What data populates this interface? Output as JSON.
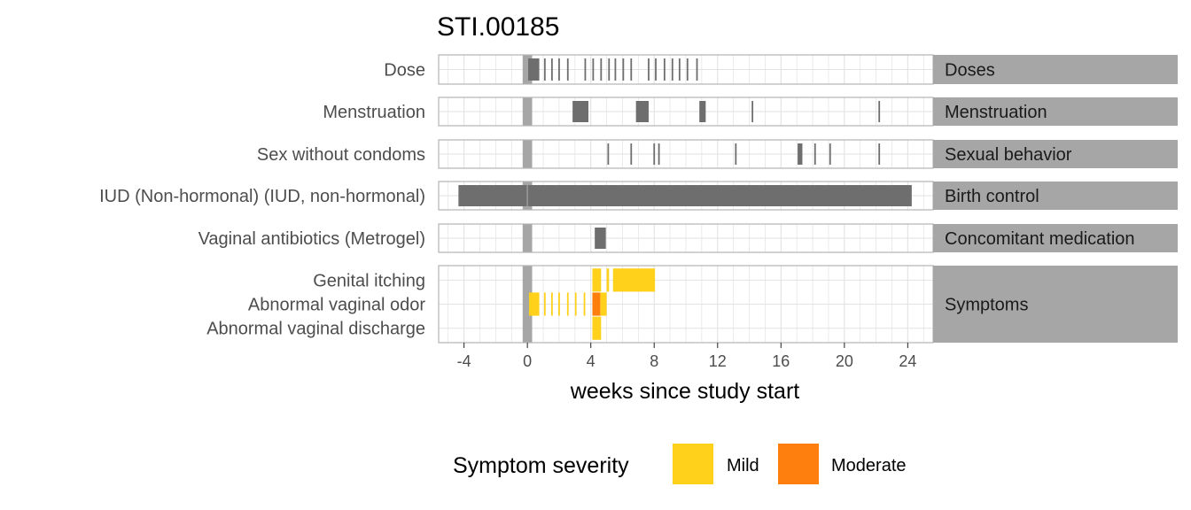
{
  "chart_data": {
    "type": "timeline",
    "title": "STI.00185",
    "xlabel": "weeks since study start",
    "xlim": [
      -5.6,
      25.6
    ],
    "xticks": [
      -4,
      0,
      4,
      8,
      12,
      16,
      20,
      24
    ],
    "xtick_labels": [
      "-4",
      "0",
      "4",
      "8",
      "12",
      "16",
      "20",
      "24"
    ],
    "grid": true,
    "study_start_band": [
      -0.3,
      0.3
    ],
    "colors": {
      "event": "#6e6e6e",
      "band": "#a6a6a6",
      "strip": "#a6a6a6",
      "mild": "#ffd11a",
      "moderate": "#ff7f0e",
      "grid": "#e2e2e2",
      "panel_border": "#b3b3b3"
    },
    "panels": [
      {
        "strip": "Doses",
        "rows": [
          {
            "label": "Dose",
            "events": [
              [
                0.05,
                0.75
              ],
              [
                1.05,
                1.15
              ],
              [
                1.5,
                1.6
              ],
              [
                1.95,
                2.05
              ],
              [
                2.5,
                2.6
              ],
              [
                3.6,
                3.7
              ],
              [
                4.1,
                4.2
              ],
              [
                4.6,
                4.7
              ],
              [
                5.1,
                5.2
              ],
              [
                5.5,
                5.6
              ],
              [
                6,
                6.1
              ],
              [
                6.5,
                6.6
              ],
              [
                7.6,
                7.7
              ],
              [
                8.05,
                8.15
              ],
              [
                8.6,
                8.7
              ],
              [
                9.1,
                9.2
              ],
              [
                9.55,
                9.65
              ],
              [
                10.05,
                10.15
              ],
              [
                10.65,
                10.75
              ]
            ]
          }
        ]
      },
      {
        "strip": "Menstruation",
        "rows": [
          {
            "label": "Menstruation",
            "events": [
              [
                2.85,
                3.85
              ],
              [
                6.85,
                7.65
              ],
              [
                10.85,
                11.25
              ],
              [
                14.15,
                14.25
              ],
              [
                22.15,
                22.25
              ]
            ]
          }
        ]
      },
      {
        "strip": "Sexual behavior",
        "rows": [
          {
            "label": "Sex without condoms",
            "events": [
              [
                5.05,
                5.15
              ],
              [
                6.5,
                6.6
              ],
              [
                7.95,
                8.05
              ],
              [
                8.25,
                8.35
              ],
              [
                13.1,
                13.2
              ],
              [
                17.05,
                17.35
              ],
              [
                18.1,
                18.2
              ],
              [
                19.05,
                19.15
              ],
              [
                22.15,
                22.25
              ]
            ]
          }
        ]
      },
      {
        "strip": "Birth control",
        "rows": [
          {
            "label": "IUD (Non-hormonal) (IUD, non-hormonal)",
            "events": [
              [
                -4.35,
                24.25
              ]
            ]
          }
        ]
      },
      {
        "strip": "Concomitant medication",
        "rows": [
          {
            "label": "Vaginal antibiotics (Metrogel)",
            "events": [
              [
                4.25,
                4.95
              ]
            ]
          }
        ]
      },
      {
        "strip": "Symptoms",
        "rows": [
          {
            "label": "Genital itching",
            "segments": [
              [
                4.1,
                4.65,
                "Mild"
              ],
              [
                5.0,
                5.15,
                "Mild"
              ],
              [
                5.4,
                8.05,
                "Mild"
              ]
            ]
          },
          {
            "label": "Abnormal vaginal odor",
            "segments": [
              [
                0.1,
                0.75,
                "Mild"
              ],
              [
                1.05,
                1.15,
                "Mild"
              ],
              [
                1.5,
                1.6,
                "Mild"
              ],
              [
                1.95,
                2.05,
                "Mild"
              ],
              [
                2.5,
                2.6,
                "Mild"
              ],
              [
                3.0,
                3.1,
                "Mild"
              ],
              [
                3.55,
                3.65,
                "Mild"
              ],
              [
                4.1,
                4.6,
                "Moderate"
              ],
              [
                4.6,
                5.0,
                "Mild"
              ]
            ]
          },
          {
            "label": "Abnormal vaginal discharge",
            "segments": [
              [
                4.1,
                4.65,
                "Mild"
              ]
            ]
          }
        ]
      }
    ],
    "legend": {
      "title": "Symptom severity",
      "position": "bottom",
      "items": [
        {
          "label": "Mild",
          "color": "#ffd11a"
        },
        {
          "label": "Moderate",
          "color": "#ff7f0e"
        }
      ]
    }
  }
}
